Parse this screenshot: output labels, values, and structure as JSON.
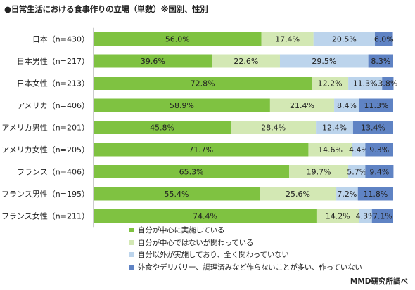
{
  "page": {
    "title": "●日常生活における食事作りの立場（単数）※国別、性別",
    "source": "MMD研究所調べ"
  },
  "chart_data": {
    "type": "bar",
    "stacked": true,
    "orientation": "horizontal",
    "unit": "%",
    "categories": [
      "日本（n=430）",
      "日本男性（n=217）",
      "日本女性（n=213）",
      "アメリカ（n=406）",
      "アメリカ男性（n=201）",
      "アメリカ女性（n=205）",
      "フランス（n=406）",
      "フランス男性（n=195）",
      "フランス女性（n=211）"
    ],
    "series": [
      {
        "name": "自分が中心に実施している",
        "color": "#7fc241",
        "values": [
          56.0,
          39.6,
          72.8,
          58.9,
          45.8,
          71.7,
          65.3,
          55.4,
          74.4
        ]
      },
      {
        "name": "自分が中心ではないが関わっている",
        "color": "#d3e8b4",
        "values": [
          17.4,
          22.6,
          12.2,
          21.4,
          28.4,
          14.6,
          19.7,
          25.6,
          14.2
        ]
      },
      {
        "name": "自分以外が実施しており、全く関わっていない",
        "color": "#bcd4ec",
        "values": [
          20.5,
          29.5,
          11.3,
          8.4,
          12.4,
          4.4,
          5.7,
          7.2,
          4.3
        ]
      },
      {
        "name": "外食やデリバリー、調理済みなど作らないことが多い、作っていない",
        "color": "#5f83c4",
        "values": [
          6.0,
          8.3,
          3.8,
          11.3,
          13.4,
          9.3,
          9.4,
          11.8,
          7.1
        ]
      }
    ],
    "xlim": [
      0,
      100
    ],
    "grid": false,
    "legend": "bottom"
  }
}
